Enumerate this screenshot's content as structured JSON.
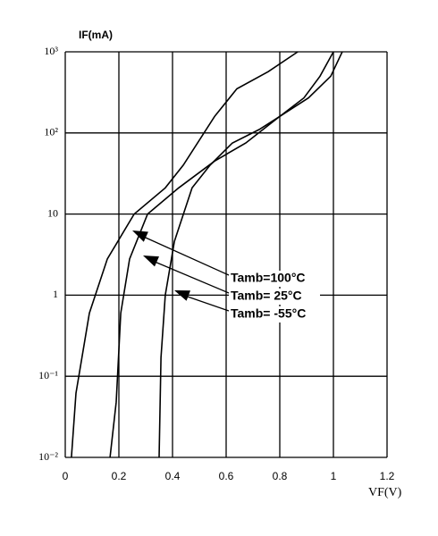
{
  "chart_data": {
    "type": "line",
    "y_label": "IF(mA)",
    "x_label": "VF(V)",
    "xlim": [
      0,
      1.2
    ],
    "xticks": [
      0,
      0.2,
      0.4,
      0.6,
      0.8,
      1,
      1.2
    ],
    "ylim": [
      0.01,
      1000
    ],
    "yticks": [
      {
        "value": 0.01,
        "label": "10⁻²"
      },
      {
        "value": 0.1,
        "label": "10⁻¹"
      },
      1,
      10,
      {
        "value": 100,
        "label": "10²"
      },
      {
        "value": 1000,
        "label": "10³"
      }
    ],
    "log_y": true,
    "grid": true,
    "series": [
      {
        "name": "Tamb=100°C",
        "color": "#000000",
        "x": [
          0.023,
          0.04,
          0.09,
          0.157,
          0.257,
          0.373,
          0.44,
          0.557,
          0.64,
          0.757,
          0.867
        ],
        "values": [
          0.01,
          0.062,
          0.6,
          2.8,
          10,
          21,
          40,
          160,
          350,
          570,
          1000
        ]
      },
      {
        "name": "Tamb= 25°C",
        "color": "#000000",
        "x": [
          0.167,
          0.19,
          0.207,
          0.24,
          0.307,
          0.423,
          0.557,
          0.673,
          0.8,
          0.89,
          0.95,
          1.0
        ],
        "values": [
          0.01,
          0.048,
          0.6,
          2.8,
          10,
          21,
          45,
          75,
          160,
          270,
          500,
          1000
        ]
      },
      {
        "name": "Tamb= -55°C",
        "color": "#000000",
        "x": [
          0.35,
          0.357,
          0.373,
          0.407,
          0.473,
          0.54,
          0.623,
          0.723,
          0.8,
          0.907,
          0.99,
          1.033
        ],
        "values": [
          0.01,
          0.17,
          1,
          4.6,
          21,
          40,
          75,
          110,
          160,
          270,
          500,
          1000
        ]
      }
    ]
  }
}
